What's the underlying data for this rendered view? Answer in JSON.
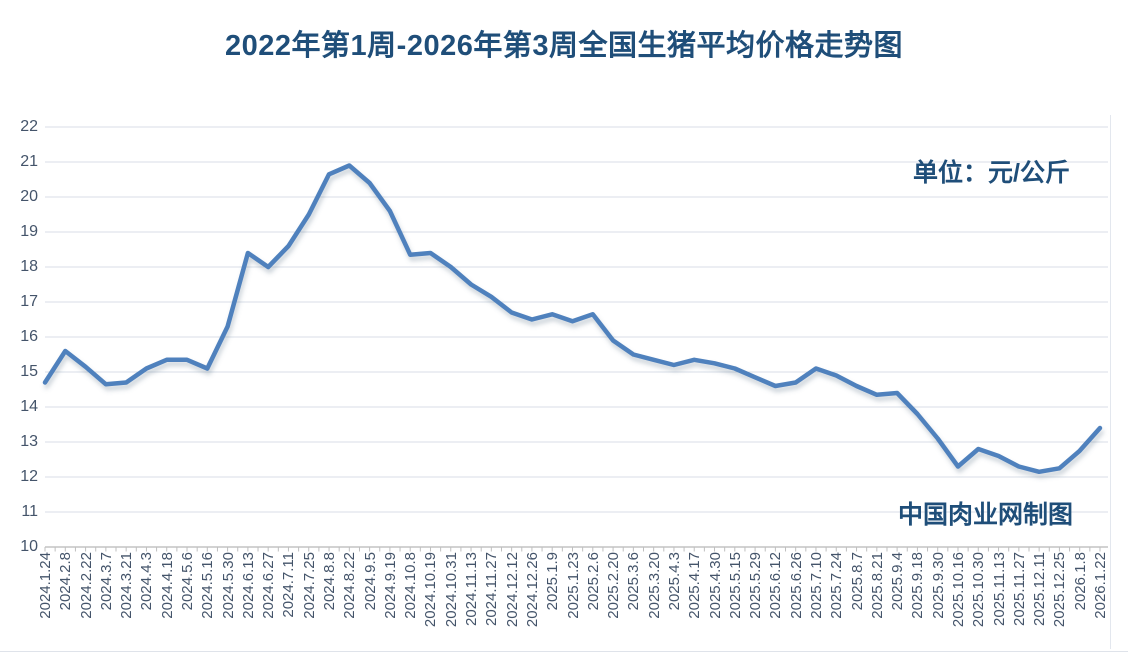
{
  "page": {
    "title": "2022年第1周-2026年第3周全国生猪平均价格走势图",
    "unit_label": "单位：元/公斤",
    "credit_label": "中国肉业网制图"
  },
  "colors": {
    "title_text": "#1f4e79",
    "line": "#4f81bd",
    "axis_text": "#44546a",
    "gridline": "#d8dee7",
    "axis_line": "#a6a6a6",
    "tick_mark": "#bfbfbf",
    "background": "#ffffff"
  },
  "chart_data": {
    "type": "line",
    "title": "2022年第1周-2026年第3周全国生猪平均价格走势图",
    "unit": "元/公斤",
    "xlabel": "",
    "ylabel": "元/公斤",
    "ylim": [
      10,
      22
    ],
    "y_ticks": [
      10,
      11,
      12,
      13,
      14,
      15,
      16,
      17,
      18,
      19,
      20,
      21,
      22
    ],
    "grid": true,
    "legend_position": "none",
    "series_name": "全国生猪平均价格",
    "categories": [
      "2024.1.24",
      "2024.2.8",
      "2024.2.22",
      "2024.3.7",
      "2024.3.21",
      "2024.4.3",
      "2024.4.18",
      "2024.5.6",
      "2024.5.16",
      "2024.5.30",
      "2024.6.13",
      "2024.6.27",
      "2024.7.11",
      "2024.7.25",
      "2024.8.8",
      "2024.8.22",
      "2024.9.5",
      "2024.9.19",
      "2024.10.8",
      "2024.10.19",
      "2024.10.31",
      "2024.11.13",
      "2024.11.27",
      "2024.12.12",
      "2024.12.26",
      "2025.1.9",
      "2025.1.23",
      "2025.2.6",
      "2025.2.20",
      "2025.3.6",
      "2025.3.20",
      "2025.4.3",
      "2025.4.17",
      "2025.4.30",
      "2025.5.15",
      "2025.5.29",
      "2025.6.12",
      "2025.6.26",
      "2025.7.10",
      "2025.7.24",
      "2025.8.7",
      "2025.8.21",
      "2025.9.4",
      "2025.9.18",
      "2025.9.30",
      "2025.10.16",
      "2025.10.30",
      "2025.11.13",
      "2025.11.27",
      "2025.12.11",
      "2025.12.25",
      "2026.1.8",
      "2026.1.22"
    ],
    "values": [
      14.7,
      15.6,
      15.15,
      14.65,
      14.7,
      15.1,
      15.35,
      15.35,
      15.1,
      16.3,
      18.4,
      18.0,
      18.6,
      19.5,
      20.65,
      20.9,
      20.4,
      19.6,
      18.35,
      18.4,
      18.0,
      17.5,
      17.15,
      16.7,
      16.5,
      16.65,
      16.45,
      16.65,
      15.9,
      15.5,
      15.35,
      15.2,
      15.35,
      15.25,
      15.1,
      14.85,
      14.6,
      14.7,
      15.1,
      14.9,
      14.6,
      14.35,
      14.4,
      13.8,
      13.1,
      12.3,
      12.8,
      12.6,
      12.3,
      12.15,
      12.25,
      12.75,
      13.4
    ]
  }
}
